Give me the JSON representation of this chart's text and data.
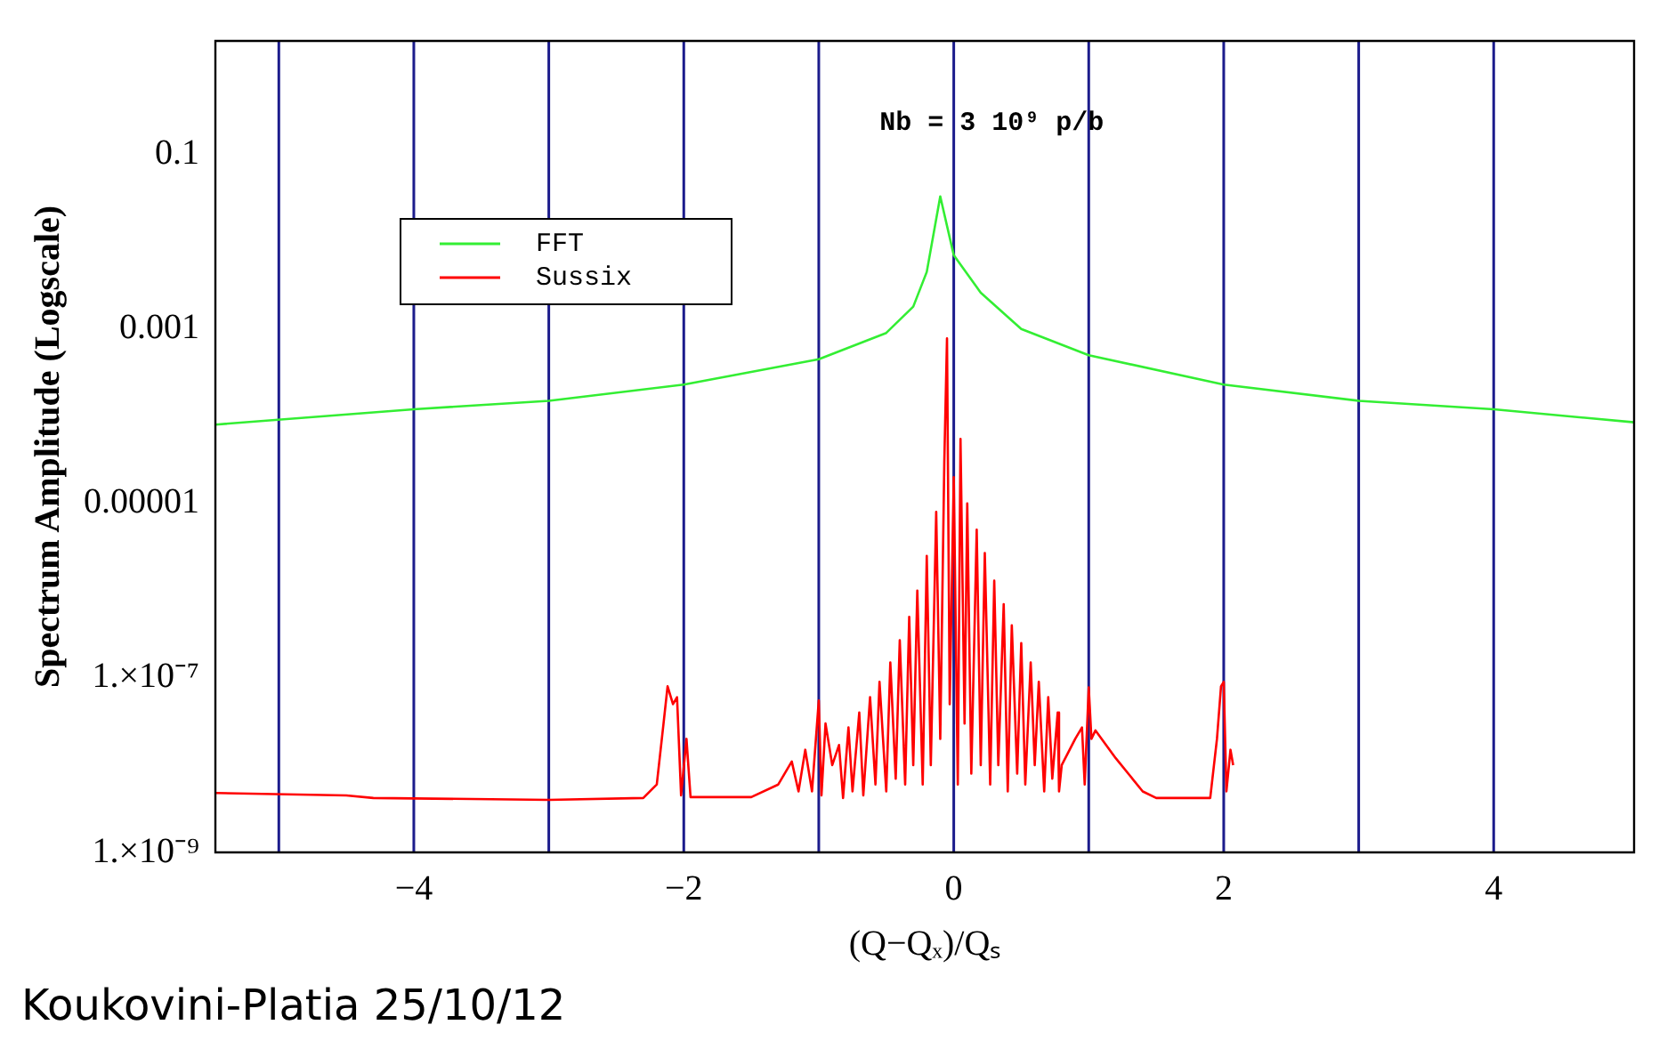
{
  "chart_data": {
    "type": "line",
    "xlabel": "(Q−Qₓ)/Qₛ",
    "ylabel": "Spectrum Amplitude (Logscale)",
    "annotations": [
      "Nb = 3 10⁹ p/b",
      "Koukovini-Platia 25/10/12"
    ],
    "log": "y",
    "grid": false,
    "legend": "top left",
    "marker": "none",
    "line_style": "solid",
    "xlim": [
      -5.47,
      5.04
    ],
    "xticks": [
      -4,
      -2,
      0,
      2,
      4
    ],
    "ylim": [
      1e-09,
      2
    ],
    "yticks": [
      0.1,
      0.001,
      {
        "value": 1e-05,
        "label": "0.00001"
      },
      {
        "value": 1e-07,
        "label": "1.×10⁻⁷"
      },
      {
        "value": 1e-09,
        "label": "1.×10⁻⁹"
      }
    ],
    "ref_lines": [
      {
        "axis": "x",
        "value": -5,
        "color": "#1c1c8c"
      },
      {
        "axis": "x",
        "value": -4,
        "color": "#1c1c8c"
      },
      {
        "axis": "x",
        "value": -3,
        "color": "#1c1c8c"
      },
      {
        "axis": "x",
        "value": -2,
        "color": "#1c1c8c"
      },
      {
        "axis": "x",
        "value": -1,
        "color": "#1c1c8c"
      },
      {
        "axis": "x",
        "value": 0,
        "color": "#1c1c8c"
      },
      {
        "axis": "x",
        "value": 1,
        "color": "#1c1c8c"
      },
      {
        "axis": "x",
        "value": 2,
        "color": "#1c1c8c"
      },
      {
        "axis": "x",
        "value": 3,
        "color": "#1c1c8c"
      },
      {
        "axis": "x",
        "value": 4,
        "color": "#1c1c8c"
      }
    ],
    "series": [
      {
        "name": "FFT",
        "color": "#33ee33",
        "x": [
          -5.47,
          -4,
          -3,
          -2,
          -1,
          -0.5,
          -0.3,
          -0.2,
          -0.1,
          0,
          0.2,
          0.5,
          1,
          2,
          3,
          4,
          5.04
        ],
        "values": [
          8e-05,
          0.00012,
          0.00015,
          0.00023,
          0.00045,
          0.0009,
          0.0018,
          0.0045,
          0.033,
          0.007,
          0.0026,
          0.001,
          0.0005,
          0.00023,
          0.00015,
          0.00012,
          8.5e-05
        ]
      },
      {
        "name": "Sussix",
        "color": "#ff0000",
        "x": [
          -5.47,
          -4.5,
          -4.3,
          -3,
          -2.3,
          -2.2,
          -2.15,
          -2.12,
          -2.08,
          -2.05,
          -2.02,
          -1.98,
          -1.95,
          -1.5,
          -1.3,
          -1.2,
          -1.15,
          -1.1,
          -1.05,
          -1.0,
          -0.98,
          -0.95,
          -0.9,
          -0.85,
          -0.82,
          -0.78,
          -0.75,
          -0.7,
          -0.67,
          -0.62,
          -0.58,
          -0.55,
          -0.5,
          -0.47,
          -0.43,
          -0.4,
          -0.36,
          -0.33,
          -0.3,
          -0.27,
          -0.23,
          -0.2,
          -0.17,
          -0.13,
          -0.1,
          -0.07,
          -0.05,
          -0.03,
          0,
          0.03,
          0.05,
          0.08,
          0.1,
          0.13,
          0.17,
          0.2,
          0.23,
          0.27,
          0.3,
          0.33,
          0.37,
          0.4,
          0.43,
          0.47,
          0.5,
          0.53,
          0.57,
          0.6,
          0.63,
          0.67,
          0.7,
          0.73,
          0.77,
          0.78,
          0.8,
          0.9,
          0.95,
          0.97,
          1.0,
          1.02,
          1.05,
          1.2,
          1.4,
          1.5,
          1.9,
          1.95,
          1.98,
          2.0,
          2.02,
          2.05,
          2.07
        ],
        "values": [
          4.8e-09,
          4.5e-09,
          4.2e-09,
          4e-09,
          4.2e-09,
          6e-09,
          3e-08,
          8e-08,
          5e-08,
          6e-08,
          4.5e-09,
          2e-08,
          4.3e-09,
          4.3e-09,
          6e-09,
          1.1e-08,
          5e-09,
          1.5e-08,
          5e-09,
          5.5e-08,
          4.5e-09,
          3e-08,
          1e-08,
          1.7e-08,
          4.2e-09,
          2.7e-08,
          5e-09,
          4e-08,
          4.5e-09,
          6e-08,
          6e-09,
          9e-08,
          5e-09,
          1.5e-07,
          7e-09,
          2.7e-07,
          6e-09,
          5e-07,
          1e-08,
          1e-06,
          6e-09,
          2.5e-06,
          1e-08,
          8e-06,
          2e-08,
          3e-05,
          0.00078,
          5e-08,
          2e-05,
          6e-09,
          5.5e-05,
          3e-08,
          1e-05,
          8e-09,
          5e-06,
          1e-08,
          2.7e-06,
          6e-09,
          1.3e-06,
          1e-08,
          7e-07,
          5e-09,
          4e-07,
          8e-09,
          2.5e-07,
          6e-09,
          1.5e-07,
          1e-08,
          9e-08,
          5e-09,
          6e-08,
          7e-09,
          4e-08,
          5e-09,
          1e-08,
          2e-08,
          2.7e-08,
          6e-09,
          7.8e-08,
          2e-08,
          2.5e-08,
          1.2e-08,
          5e-09,
          4.2e-09,
          4.2e-09,
          2e-08,
          8e-08,
          9e-08,
          5e-09,
          1.5e-08,
          1e-08
        ]
      }
    ]
  }
}
